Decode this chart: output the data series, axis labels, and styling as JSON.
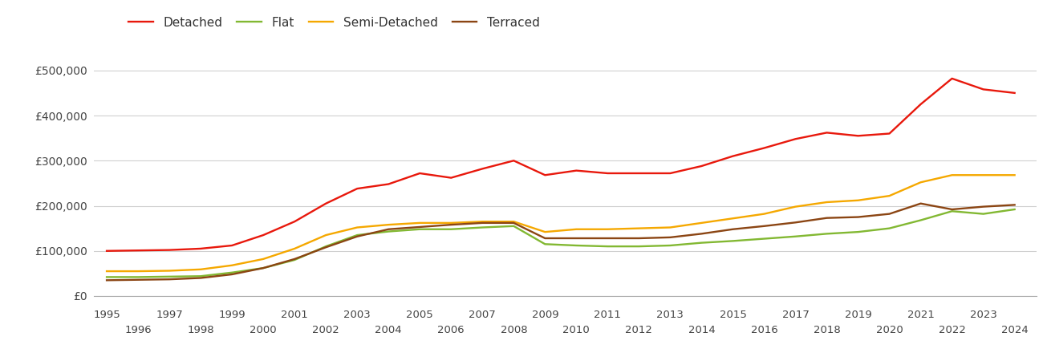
{
  "years": [
    1995,
    1996,
    1997,
    1998,
    1999,
    2000,
    2001,
    2002,
    2003,
    2004,
    2005,
    2006,
    2007,
    2008,
    2009,
    2010,
    2011,
    2012,
    2013,
    2014,
    2015,
    2016,
    2017,
    2018,
    2019,
    2020,
    2021,
    2022,
    2023,
    2024
  ],
  "detached": [
    100000,
    101000,
    102000,
    105000,
    112000,
    135000,
    165000,
    205000,
    238000,
    248000,
    272000,
    262000,
    282000,
    300000,
    268000,
    278000,
    272000,
    272000,
    272000,
    288000,
    310000,
    328000,
    348000,
    362000,
    355000,
    360000,
    425000,
    482000,
    458000,
    450000
  ],
  "flat": [
    42000,
    42000,
    43000,
    44000,
    52000,
    62000,
    80000,
    110000,
    135000,
    143000,
    148000,
    148000,
    152000,
    155000,
    115000,
    112000,
    110000,
    110000,
    112000,
    118000,
    122000,
    127000,
    132000,
    138000,
    142000,
    150000,
    168000,
    188000,
    182000,
    192000
  ],
  "semi_detached": [
    55000,
    55000,
    56000,
    59000,
    68000,
    82000,
    105000,
    135000,
    152000,
    158000,
    162000,
    162000,
    165000,
    165000,
    142000,
    148000,
    148000,
    150000,
    152000,
    162000,
    172000,
    182000,
    198000,
    208000,
    212000,
    222000,
    252000,
    268000,
    268000,
    268000
  ],
  "terraced": [
    35000,
    36000,
    37000,
    40000,
    48000,
    62000,
    82000,
    108000,
    132000,
    148000,
    153000,
    158000,
    162000,
    162000,
    128000,
    128000,
    128000,
    128000,
    130000,
    138000,
    148000,
    155000,
    163000,
    173000,
    175000,
    182000,
    205000,
    192000,
    198000,
    202000
  ],
  "colors": {
    "detached": "#e8180c",
    "flat": "#82b832",
    "semi_detached": "#f5a800",
    "terraced": "#8B4513"
  },
  "legend_labels": [
    "Detached",
    "Flat",
    "Semi-Detached",
    "Terraced"
  ],
  "ylim": [
    0,
    560000
  ],
  "yticks": [
    0,
    100000,
    200000,
    300000,
    400000,
    500000
  ],
  "ytick_labels": [
    "£0",
    "£100,000",
    "£200,000",
    "£300,000",
    "£400,000",
    "£500,000"
  ],
  "background_color": "#ffffff",
  "line_width": 1.7,
  "xlim": [
    1994.6,
    2024.7
  ]
}
